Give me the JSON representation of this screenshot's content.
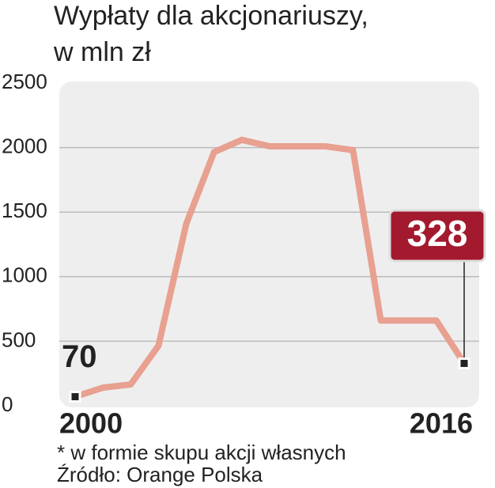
{
  "chart_data": {
    "type": "line",
    "title": "Wypłaty dla akcjonariuszy,",
    "subtitle": "w mln zł",
    "categories": [
      "2000",
      null,
      null,
      null,
      null,
      null,
      null,
      null,
      null,
      null,
      null,
      null,
      null,
      null,
      "2016"
    ],
    "values": [
      70,
      140,
      165,
      465,
      1410,
      1965,
      2060,
      2010,
      2010,
      2010,
      1980,
      660,
      660,
      660,
      328
    ],
    "color": "#e8a090",
    "ylim": [
      0,
      2500
    ],
    "yticks": [
      0,
      500,
      1000,
      1500,
      2000,
      2500
    ],
    "grid": true,
    "footnote": "* w formie skupu akcji własnych",
    "source": "Źródło: Orange Polska"
  }
}
